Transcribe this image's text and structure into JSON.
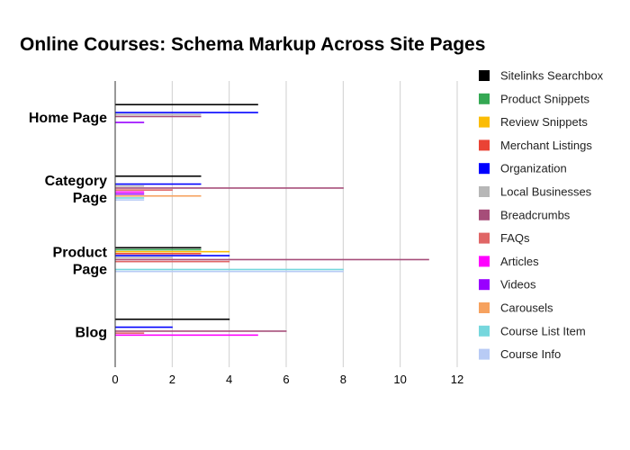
{
  "chart_data": {
    "type": "bar",
    "orientation": "horizontal",
    "title": "Online Courses: Schema Markup Across Site Pages",
    "xlabel": "",
    "ylabel": "",
    "xlim": [
      0,
      12
    ],
    "xticks": [
      0,
      2,
      4,
      6,
      8,
      10,
      12
    ],
    "grid": true,
    "legend_position": "right",
    "categories": [
      {
        "lines": [
          "Home Page"
        ]
      },
      {
        "lines": [
          "Category",
          "Page"
        ]
      },
      {
        "lines": [
          "Product",
          "Page"
        ]
      },
      {
        "lines": [
          "Blog"
        ]
      }
    ],
    "series": [
      {
        "name": "Sitelinks Searchbox",
        "color": "#000000",
        "values": [
          5,
          3,
          3,
          4
        ]
      },
      {
        "name": "Product Snippets",
        "color": "#34a853",
        "values": [
          0,
          0,
          3,
          0
        ]
      },
      {
        "name": "Review Snippets",
        "color": "#fbbc04",
        "values": [
          0,
          0,
          4,
          0
        ]
      },
      {
        "name": "Merchant Listings",
        "color": "#ea4335",
        "values": [
          0,
          0,
          3,
          0
        ]
      },
      {
        "name": "Organization",
        "color": "#0000ff",
        "values": [
          5,
          3,
          4,
          2
        ]
      },
      {
        "name": "Local Businesses",
        "color": "#b7b7b7",
        "values": [
          3,
          1,
          2,
          0
        ]
      },
      {
        "name": "Breadcrumbs",
        "color": "#a64d79",
        "values": [
          3,
          8,
          11,
          6
        ]
      },
      {
        "name": "FAQs",
        "color": "#e06666",
        "values": [
          0,
          2,
          4,
          1
        ]
      },
      {
        "name": "Articles",
        "color": "#ff00ff",
        "values": [
          0,
          1,
          0,
          5
        ]
      },
      {
        "name": "Videos",
        "color": "#9900ff",
        "values": [
          1,
          1,
          0,
          0
        ]
      },
      {
        "name": "Carousels",
        "color": "#f6a25f",
        "values": [
          0,
          3,
          0,
          0
        ]
      },
      {
        "name": "Course List Item",
        "color": "#76d7dd",
        "values": [
          0,
          1,
          8,
          0
        ]
      },
      {
        "name": "Course Info",
        "color": "#b8cbf5",
        "values": [
          0,
          1,
          8,
          0
        ]
      }
    ]
  }
}
